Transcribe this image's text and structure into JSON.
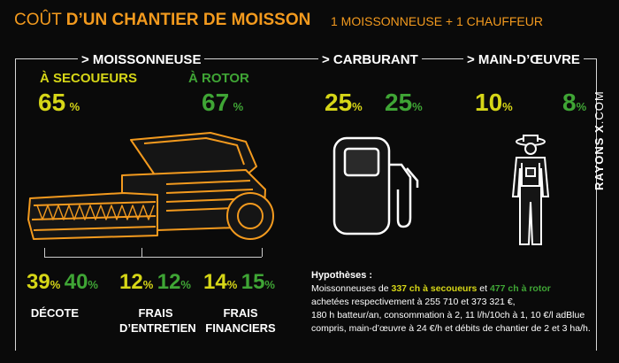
{
  "header": {
    "title_part1": "COÛT ",
    "title_part2": "D’UN CHANTIER DE MOISSON",
    "subtitle": "1 MOISSONNEUSE + 1 CHAUFFEUR"
  },
  "sections": {
    "moissonneuse": {
      "heading": "> MOISSONNEUSE",
      "secoueurs_label": "À SECOUEURS",
      "rotor_label": "À ROTOR",
      "secoueurs_value": "65",
      "rotor_value": "67",
      "unit": "%"
    },
    "carburant": {
      "heading": "> CARBURANT",
      "value_yellow": "25",
      "value_green": "25",
      "unit": "%"
    },
    "main_oeuvre": {
      "heading": "> MAIN-D’ŒUVRE",
      "value_yellow": "10",
      "value_green": "8",
      "unit": "%"
    }
  },
  "breakdown": [
    {
      "yellow": "39",
      "green": "40",
      "unit": "%",
      "label_line1": "DÉCOTE",
      "label_line2": ""
    },
    {
      "yellow": "12",
      "green": "12",
      "unit": "%",
      "label_line1": "FRAIS",
      "label_line2": "D’ENTRETIEN"
    },
    {
      "yellow": "14",
      "green": "15",
      "unit": "%",
      "label_line1": "FRAIS",
      "label_line2": "FINANCIERS"
    }
  ],
  "hypotheses": {
    "title": "Hypothèses :",
    "line1_a": "Moissonneuses de ",
    "line1_b": "337 ch à secoueurs",
    "line1_c": " et ",
    "line1_d": "477 ch à rotor",
    "line2": "achetées respectivement à 255 710 et 373 321 €,",
    "line3": " 180 h batteur/an, consommation à 2, 11 l/h/10ch à 1, 10 €/l adBlue",
    "line4": "compris, main-d’œuvre à 24 €/h et débits de chantier de 2 et 3 ha/h."
  },
  "brand": {
    "name": "RAYONS X",
    "suffix": ".COM"
  },
  "colors": {
    "orange": "#f39a1e",
    "yellow": "#d6d617",
    "green": "#3fa535"
  }
}
